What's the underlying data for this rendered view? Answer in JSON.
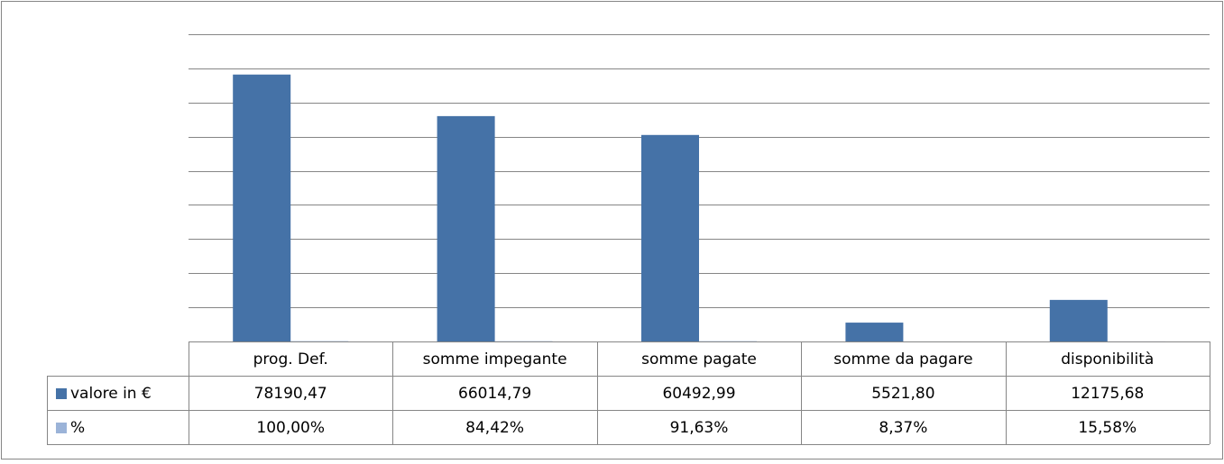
{
  "chart_data": {
    "type": "bar",
    "categories": [
      "prog. Def.",
      "somme impegante",
      "somme pagate",
      "somme da pagare",
      "disponibilità"
    ],
    "series": [
      {
        "name": "valore in €",
        "color": "#4572a7",
        "values": [
          78190.47,
          66014.79,
          60492.99,
          5521.8,
          12175.68
        ],
        "value_labels": [
          "78190,47",
          "66014,79",
          "60492,99",
          "5521,80",
          "12175,68"
        ]
      },
      {
        "name": "%",
        "color": "#9bb3d8",
        "values": [
          100.0,
          84.42,
          91.63,
          8.37,
          15.58
        ],
        "value_labels": [
          "100,00%",
          "84,42%",
          "91,63%",
          "8,37%",
          "15,58%"
        ]
      }
    ],
    "ylim": [
      0,
      90000
    ],
    "yticks": [
      0,
      10000,
      20000,
      30000,
      40000,
      50000,
      60000,
      70000,
      80000,
      90000
    ],
    "grid": true
  }
}
